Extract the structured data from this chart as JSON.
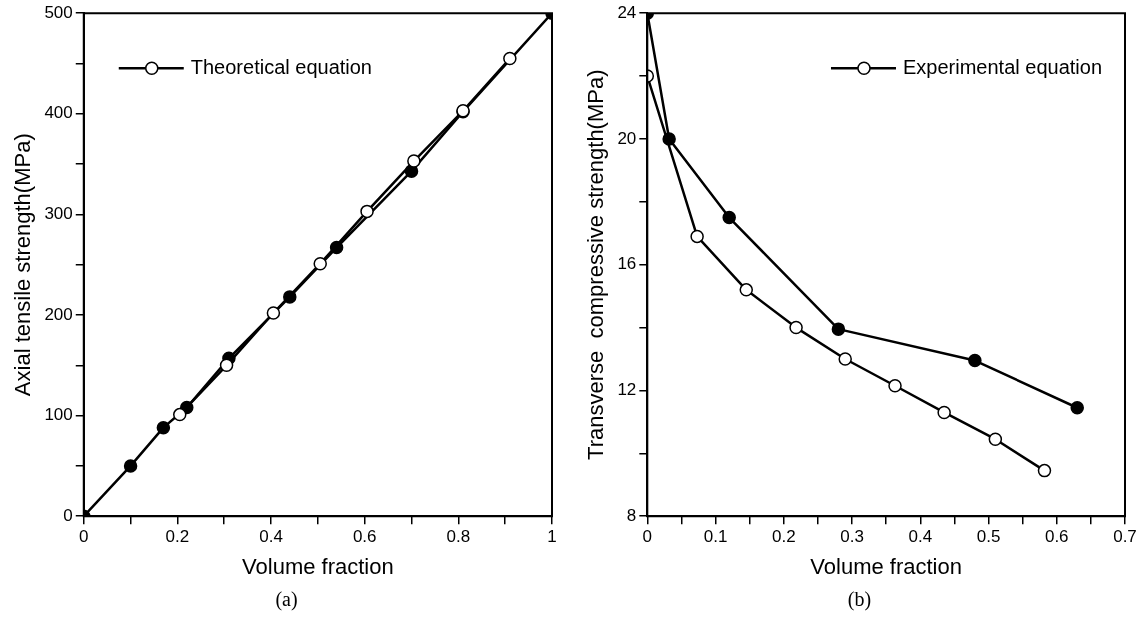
{
  "chart_data": [
    {
      "type": "line",
      "xlabel": "Volume fraction",
      "ylabel": "Axial tensile strength(MPa)",
      "annotations": [
        "(a)"
      ],
      "xlim": [
        0,
        1
      ],
      "xticks": [
        0,
        {
          "value": 0.1,
          "label": null
        },
        0.2,
        {
          "value": 0.3,
          "label": null
        },
        0.4,
        {
          "value": 0.5,
          "label": null
        },
        0.6,
        {
          "value": 0.7,
          "label": null
        },
        0.8,
        {
          "value": 0.9,
          "label": null
        },
        1
      ],
      "ylim": [
        0,
        500
      ],
      "yticks": [
        0,
        {
          "value": 50,
          "label": null
        },
        100,
        {
          "value": 150,
          "label": null
        },
        200,
        {
          "value": 250,
          "label": null
        },
        300,
        {
          "value": 350,
          "label": null
        },
        400,
        {
          "value": 450,
          "label": null
        },
        500
      ],
      "grid": false,
      "legend": "top left",
      "marker": "circle",
      "line_style": "solid",
      "series": [
        {
          "color": "#000000",
          "x": [
            0,
            0.1,
            0.17,
            0.22,
            0.31,
            0.44,
            0.54,
            0.7,
            0.81,
            1
          ],
          "values": [
            0,
            50,
            88,
            108,
            157,
            218,
            267,
            343,
            402,
            500
          ]
        },
        {
          "name": "Theoretical equation",
          "color": "#000000",
          "colors": [
            "#ffffff",
            "#ffffff",
            "#ffffff",
            "#ffffff",
            "#ffffff",
            "#ffffff",
            "#ffffff",
            "#ffffff"
          ],
          "x": [
            0.205,
            0.305,
            0.405,
            0.505,
            0.605,
            0.705,
            0.81,
            0.91
          ],
          "values": [
            101,
            150,
            202,
            251,
            303,
            353,
            403,
            455
          ]
        }
      ]
    },
    {
      "type": "line",
      "xlabel": "Volume fraction",
      "ylabel": "Transverse  compressive strength(MPa)",
      "annotations": [
        "(b)"
      ],
      "xlim": [
        0,
        0.7
      ],
      "xticks": [
        0,
        {
          "value": 0.05,
          "label": null
        },
        0.1,
        {
          "value": 0.15,
          "label": null
        },
        0.2,
        {
          "value": 0.25,
          "label": null
        },
        0.3,
        {
          "value": 0.35,
          "label": null
        },
        0.4,
        {
          "value": 0.45,
          "label": null
        },
        0.5,
        {
          "value": 0.55,
          "label": null
        },
        0.6,
        {
          "value": 0.65,
          "label": null
        },
        0.7
      ],
      "ylim": [
        8,
        24
      ],
      "yticks": [
        8,
        {
          "value": 10,
          "label": null
        },
        12,
        {
          "value": 14,
          "label": null
        },
        16,
        {
          "value": 18,
          "label": null
        },
        20,
        {
          "value": 22,
          "label": null
        },
        24
      ],
      "grid": false,
      "legend": "top right",
      "marker": "circle",
      "line_style": "solid",
      "series": [
        {
          "color": "#000000",
          "x": [
            0,
            0.032,
            0.12,
            0.28,
            0.48,
            0.63
          ],
          "values": [
            24,
            20,
            17.5,
            13.95,
            12.95,
            11.45
          ]
        },
        {
          "name": "Experimental equation",
          "color": "#000000",
          "colors": [
            "#ffffff",
            "#ffffff",
            "#ffffff",
            "#ffffff",
            "#ffffff",
            "#ffffff",
            "#ffffff",
            "#ffffff",
            "#ffffff"
          ],
          "x": [
            0,
            0.073,
            0.145,
            0.218,
            0.29,
            0.363,
            0.435,
            0.51,
            0.582
          ],
          "values": [
            22,
            16.9,
            15.2,
            14.0,
            13.0,
            12.15,
            11.3,
            10.45,
            9.45
          ]
        }
      ]
    }
  ]
}
